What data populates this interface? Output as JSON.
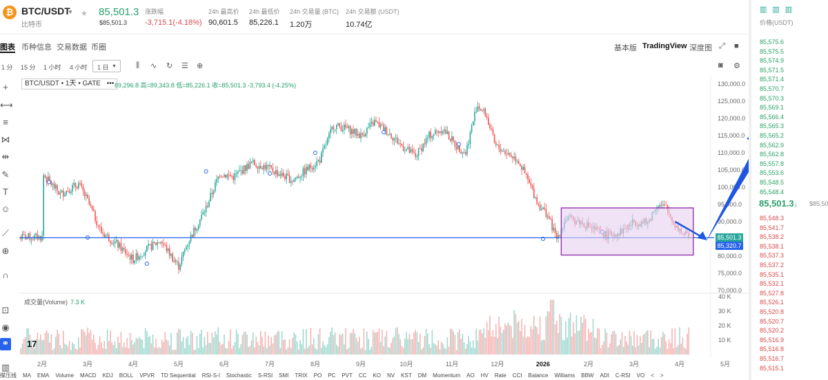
{
  "header": {
    "pair": "BTC/USDT",
    "pair_sub": "比特币",
    "last_price": "85,501.3",
    "last_price_sub": "$85,501.3",
    "stats": [
      {
        "label": "涨跌幅",
        "value": "-3,715.1(-4.18%)",
        "neg": true
      },
      {
        "label": "24h 最高价",
        "value": "90,601.5",
        "neg": false
      },
      {
        "label": "24h 最低价",
        "value": "85,226.1",
        "neg": false
      },
      {
        "label": "24h 交易量 (BTC)",
        "value": "1.20万",
        "neg": false
      },
      {
        "label": "24h 交易额 (USDT)",
        "value": "10.74亿",
        "neg": false
      }
    ]
  },
  "nav": {
    "tabs": [
      "图表",
      "币种信息",
      "交易数据",
      "币圈"
    ],
    "views": [
      "基本版",
      "TradingView",
      "深度图"
    ]
  },
  "toolbar": {
    "intervals": [
      "1 分",
      "15 分",
      "1 小时",
      "4 小时",
      "1 日"
    ]
  },
  "legend": {
    "symbol": "BTC/USDT • 1天 • GATE",
    "dots": "•••",
    "ohlc": "89,296.8 高=89,343.8 低=85,226.1 收=85,501.3 -3,793.4 (-4.25%)",
    "volume_label": "成交量(Volume)",
    "volume_value": "7.3 K",
    "tv_logo": "17"
  },
  "price_tags": {
    "last": "85,501.3",
    "line": "85,320.7"
  },
  "orderbook": {
    "header": "价格(USDT)",
    "asks": [
      "85,575.6",
      "85,575.5",
      "85,574.9",
      "85,571.5",
      "85,571.4",
      "85,570.7",
      "85,570.3",
      "85,569.1",
      "85,566.4",
      "85,565.3",
      "85,565.2",
      "85,562.9",
      "85,562.8",
      "85,557.8",
      "85,553.6",
      "85,548.5",
      "85,548.4"
    ],
    "mid": "85,501.3",
    "mid_arrow": "↓",
    "mid_sub": "$85,50",
    "bids": [
      "85,548.3",
      "85,541.7",
      "85,538.2",
      "85,538.1",
      "85,537.3",
      "85,537.2",
      "85,535.1",
      "85,532.1",
      "85,527.8",
      "85,526.1",
      "85,520.8",
      "85,520.7",
      "85,520.2",
      "85,516.9",
      "85,516.8",
      "85,516.7",
      "85,515.1"
    ]
  },
  "indicators": [
    "撑压线",
    "MA",
    "EMA",
    "Volume",
    "MACD",
    "KDJ",
    "BOLL",
    "VPVR",
    "TD Sequential",
    "RSI-S-I",
    "Stochastic",
    "S-RSI",
    "SMI",
    "TRIX",
    "PO",
    "PC",
    "PVT",
    "CC",
    "KO",
    "NV",
    "KST",
    "DM",
    "Momentum",
    "AO",
    "HV",
    "Rate",
    "CCI",
    "Balance",
    "Williams",
    "BBW",
    "ADI",
    "C-RSI",
    "VO",
    "<",
    ">"
  ],
  "colors": {
    "up": "#26a69a",
    "down": "#ef5350",
    "line": "#2563eb",
    "box_stroke": "#8e24aa",
    "box_fill": "#e6d0f0",
    "arrow": "#1f56e0"
  },
  "chart_data": {
    "type": "candlestick",
    "y_axis": {
      "ticks": [
        130000,
        125000,
        120000,
        115000,
        110000,
        105000,
        100000,
        95000,
        90000,
        85000,
        80000,
        75000,
        70000
      ],
      "ylim": [
        70000,
        131000
      ]
    },
    "volume_axis": {
      "ticks": [
        10000,
        20000,
        30000,
        40000
      ],
      "tick_labels": [
        "10 K",
        "20 K",
        "30 K",
        "40 K"
      ]
    },
    "x_labels": [
      "2月",
      "3月",
      "4月",
      "5月",
      "6月",
      "7月",
      "8月",
      "9月",
      "10月",
      "11月",
      "12月",
      "2026",
      "2月",
      "3月",
      "4月",
      "5月"
    ],
    "series": [
      {
        "values": [
          [
            0,
            104000
          ],
          [
            0.4,
            98000
          ],
          [
            0.8,
            101000
          ],
          [
            1.0,
            96000
          ],
          [
            1.3,
            87000
          ],
          [
            1.6,
            84000
          ],
          [
            2.0,
            79000
          ],
          [
            2.3,
            82000
          ],
          [
            2.6,
            84500
          ],
          [
            3.0,
            77000
          ],
          [
            3.2,
            84000
          ],
          [
            3.6,
            94000
          ],
          [
            3.9,
            104000
          ],
          [
            4.2,
            103000
          ],
          [
            4.6,
            107000
          ],
          [
            4.9,
            106000
          ],
          [
            5.2,
            104000
          ],
          [
            5.5,
            102000
          ],
          [
            5.8,
            105000
          ],
          [
            6.1,
            108000
          ],
          [
            6.4,
            118000
          ],
          [
            6.7,
            117000
          ],
          [
            7.0,
            115000
          ],
          [
            7.3,
            119000
          ],
          [
            7.6,
            116000
          ],
          [
            7.9,
            112000
          ],
          [
            8.2,
            109000
          ],
          [
            8.5,
            115000
          ],
          [
            8.8,
            117000
          ],
          [
            9.1,
            112000
          ],
          [
            9.3,
            110000
          ],
          [
            9.55,
            124000
          ],
          [
            9.75,
            121000
          ],
          [
            9.95,
            112000
          ],
          [
            10.2,
            110000
          ],
          [
            10.45,
            108000
          ],
          [
            10.7,
            101000
          ],
          [
            10.9,
            95000
          ],
          [
            11.1,
            92000
          ],
          [
            11.3,
            85000
          ],
          [
            11.5,
            91000
          ],
          [
            11.8,
            90000
          ],
          [
            12.1,
            88000
          ],
          [
            12.4,
            86000
          ],
          [
            12.7,
            87000
          ],
          [
            13.0,
            90000
          ],
          [
            13.3,
            89500
          ],
          [
            13.5,
            95000
          ],
          [
            13.7,
            94000
          ],
          [
            13.9,
            89000
          ],
          [
            14.05,
            87000
          ],
          [
            14.2,
            85500
          ]
        ]
      }
    ],
    "last_price": 85501.3,
    "horizontal_line": 85320.7,
    "range_box": {
      "x_start": 11.4,
      "x_end": 14.3,
      "y_top": 94000,
      "y_bottom": 80300
    },
    "arrows": [
      {
        "from": [
          13.9,
          90000
        ],
        "to": [
          14.6,
          84600
        ]
      },
      {
        "from": [
          14.6,
          84600
        ],
        "to": [
          16.1,
          120000
        ]
      }
    ]
  }
}
